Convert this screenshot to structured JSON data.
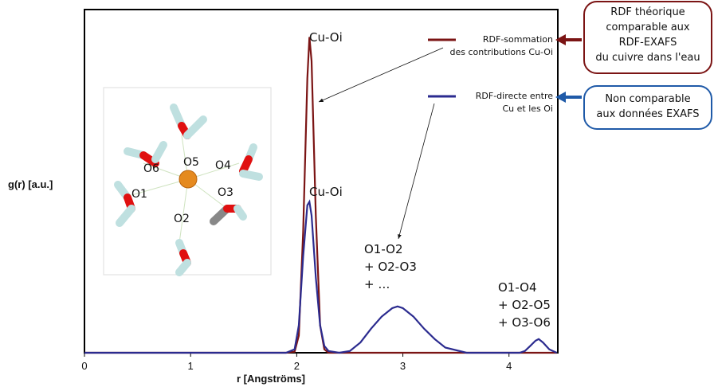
{
  "chart_data": {
    "type": "line",
    "x_label": "r [Angströms]",
    "y_label": "g(r) [a.u.]",
    "xlim": [
      0,
      4.46
    ],
    "ylim": [
      0,
      100
    ],
    "xticks": [
      0,
      1,
      2,
      3,
      4
    ],
    "x": [
      0,
      0.5,
      1,
      1.5,
      1.9,
      1.98,
      2.02,
      2.06,
      2.1,
      2.12,
      2.14,
      2.18,
      2.22,
      2.26,
      2.3,
      2.4,
      2.5,
      2.6,
      2.7,
      2.8,
      2.9,
      2.95,
      3.0,
      3.1,
      3.2,
      3.3,
      3.4,
      3.6,
      3.8,
      4.0,
      4.1,
      4.15,
      4.2,
      4.25,
      4.28,
      4.32,
      4.38,
      4.45
    ],
    "series": [
      {
        "name": "RDF-sommation\ndes contributions Cu-Oi",
        "color": "#7b1414",
        "values": [
          0,
          0,
          0,
          0,
          0,
          0.3,
          5,
          35,
          80,
          92,
          85,
          40,
          8,
          1,
          0,
          0,
          0,
          0,
          0,
          0,
          0,
          0,
          0,
          0,
          0,
          0,
          0,
          0,
          0,
          0,
          0,
          0,
          0,
          0,
          0,
          0,
          0,
          0
        ]
      },
      {
        "name": "RDF-directe entre\nCu et les Oi",
        "color": "#2b2b8f",
        "values": [
          0,
          0,
          0,
          0,
          0,
          1,
          8,
          28,
          43,
          44,
          40,
          22,
          8,
          2,
          0.5,
          0,
          0.5,
          3,
          7,
          10.5,
          13,
          13.5,
          13,
          10.5,
          7,
          4,
          1.5,
          0,
          0,
          0,
          0,
          0.5,
          2,
          3.5,
          4,
          3,
          1,
          0
        ]
      }
    ],
    "annotations": [
      "Cu-Oi",
      "Cu-Oi",
      "O1-O2\n+ O2-O3\n+     …",
      "O1-O4\n+ O2-O5\n+ O3-O6"
    ],
    "notes": [
      "RDF théorique\ncomparable aux\nRDF-EXAFS\ndu cuivre dans l'eau",
      "Non comparable\naux données EXAFS"
    ],
    "inset_labels": [
      "O1",
      "O2",
      "O3",
      "O4",
      "O5",
      "O6"
    ]
  }
}
